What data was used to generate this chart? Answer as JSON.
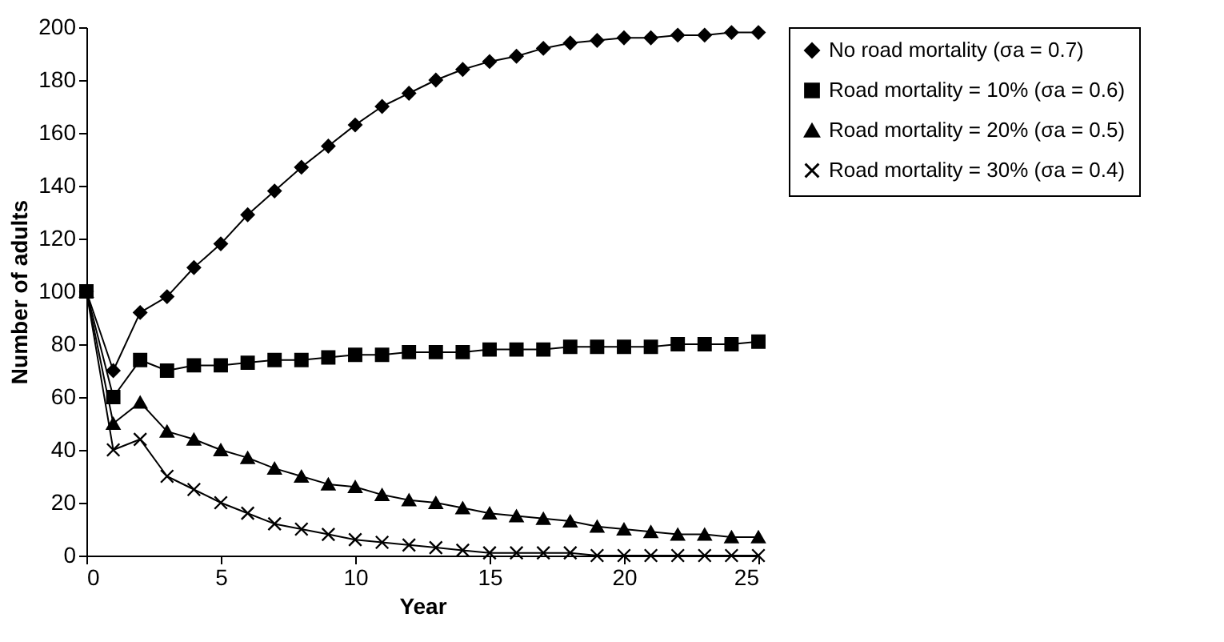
{
  "chart_data": {
    "type": "line",
    "xlabel": "Year",
    "ylabel": "Number of adults",
    "x": [
      0,
      1,
      2,
      3,
      4,
      5,
      6,
      7,
      8,
      9,
      10,
      11,
      12,
      13,
      14,
      15,
      16,
      17,
      18,
      19,
      20,
      21,
      22,
      23,
      24,
      25
    ],
    "xlim": [
      0,
      25
    ],
    "xticks": [
      0,
      5,
      10,
      15,
      20,
      25
    ],
    "ylim": [
      0,
      200
    ],
    "yticks": [
      0,
      20,
      40,
      60,
      80,
      100,
      120,
      140,
      160,
      180,
      200
    ],
    "grid": false,
    "legend": "right",
    "line_style": "solid",
    "series": [
      {
        "name": "No road mortality (σa = 0.7)",
        "color": "#000000",
        "marker": "diamond",
        "values": [
          100,
          70,
          92,
          98,
          109,
          118,
          129,
          138,
          147,
          155,
          163,
          170,
          175,
          180,
          184,
          187,
          189,
          192,
          194,
          195,
          196,
          196,
          197,
          197,
          198,
          198
        ]
      },
      {
        "name": "Road mortality = 10% (σa = 0.6)",
        "color": "#000000",
        "marker": "square",
        "values": [
          100,
          60,
          74,
          70,
          72,
          72,
          73,
          74,
          74,
          75,
          76,
          76,
          77,
          77,
          77,
          78,
          78,
          78,
          79,
          79,
          79,
          79,
          80,
          80,
          80,
          81
        ]
      },
      {
        "name": "Road mortality = 20% (σa = 0.5)",
        "color": "#000000",
        "marker": "triangle",
        "values": [
          100,
          50,
          58,
          47,
          44,
          40,
          37,
          33,
          30,
          27,
          26,
          23,
          21,
          20,
          18,
          16,
          15,
          14,
          13,
          11,
          10,
          9,
          8,
          8,
          7,
          7
        ]
      },
      {
        "name": "Road mortality = 30% (σa = 0.4)",
        "color": "#000000",
        "marker": "cross",
        "values": [
          100,
          40,
          44,
          30,
          25,
          20,
          16,
          12,
          10,
          8,
          6,
          5,
          4,
          3,
          2,
          1,
          1,
          1,
          1,
          0,
          0,
          0,
          0,
          0,
          0,
          0
        ]
      }
    ]
  }
}
